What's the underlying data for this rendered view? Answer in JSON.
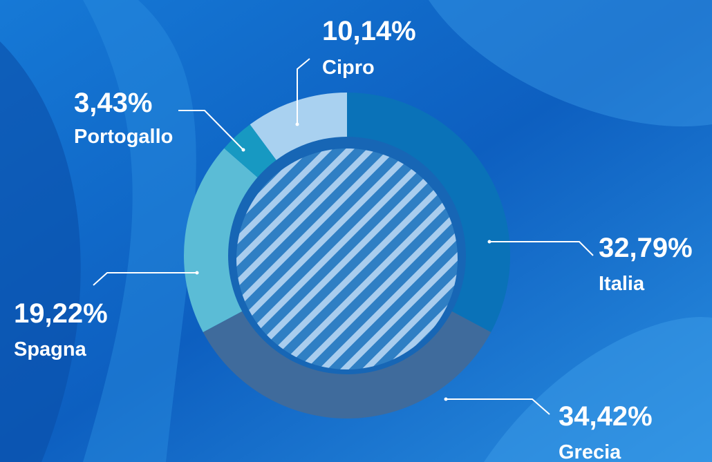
{
  "chart_data": {
    "type": "donut",
    "categories": [
      "Italia",
      "Grecia",
      "Spagna",
      "Portogallo",
      "Cipro"
    ],
    "values": [
      32.79,
      34.42,
      19.22,
      3.43,
      10.14
    ],
    "value_labels": [
      "32,79%",
      "34,42%",
      "19,22%",
      "3,43%",
      "10,14%"
    ],
    "colors": [
      "#0a72b8",
      "#3f6b9c",
      "#5bbcd6",
      "#1799c2",
      "#a9d1f0"
    ]
  }
}
